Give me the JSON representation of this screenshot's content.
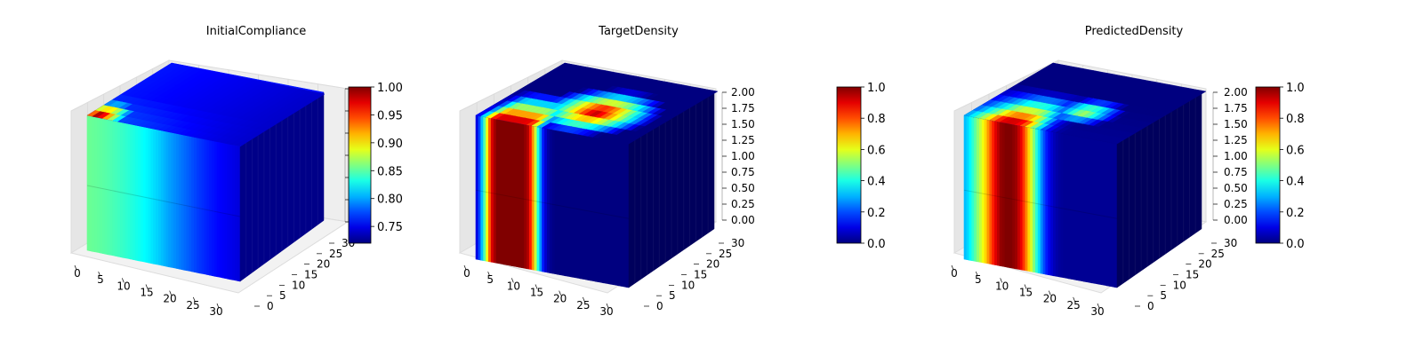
{
  "chart_data": [
    {
      "type": "voxel-3d",
      "title": "InitialCompliance",
      "x_ticks": [
        "0",
        "5",
        "10",
        "15",
        "20",
        "25",
        "30"
      ],
      "y_ticks": [
        "0",
        "5",
        "10",
        "15",
        "20",
        "25",
        "30"
      ],
      "z_ticks": [],
      "colormap": "jet",
      "colorbar": {
        "min": 0.72,
        "max": 1.0,
        "ticks": [
          "0.75",
          "0.80",
          "0.85",
          "0.90",
          "0.95",
          "1.00"
        ]
      },
      "front_face_profile": [
        0.855,
        0.852,
        0.848,
        0.843,
        0.837,
        0.83,
        0.822,
        0.812,
        0.8,
        0.79,
        0.78,
        0.77,
        0.762,
        0.755,
        0.75,
        0.745
      ],
      "top_hotspot": {
        "x": 2,
        "value": 1.0
      }
    },
    {
      "type": "voxel-3d",
      "title": "TargetDensity",
      "x_ticks": [
        "0",
        "5",
        "10",
        "15",
        "20",
        "25",
        "30"
      ],
      "y_ticks": [
        "0",
        "5",
        "10",
        "15",
        "20",
        "25",
        "30"
      ],
      "z_ticks": [
        "0.00",
        "0.25",
        "0.50",
        "0.75",
        "1.00",
        "1.25",
        "1.50",
        "1.75",
        "2.00"
      ],
      "colormap": "jet",
      "colorbar": {
        "min": 0.0,
        "max": 1.0,
        "ticks": [
          "0.0",
          "0.2",
          "0.4",
          "0.6",
          "0.8",
          "1.0"
        ]
      },
      "front_face_profile": [
        0.05,
        0.25,
        0.55,
        0.9,
        1.0,
        1.0,
        1.0,
        1.0,
        1.0,
        1.0,
        0.95,
        0.7,
        0.35,
        0.1,
        0.02,
        0.0,
        0.0,
        0.0,
        0.0,
        0.0,
        0.0,
        0.0,
        0.0,
        0.0,
        0.0,
        0.0,
        0.0,
        0.0,
        0.0,
        0.0
      ]
    },
    {
      "type": "voxel-3d",
      "title": "PredictedDensity",
      "x_ticks": [
        "0",
        "5",
        "10",
        "15",
        "20",
        "25",
        "30"
      ],
      "y_ticks": [
        "0",
        "5",
        "10",
        "15",
        "20",
        "25",
        "30"
      ],
      "z_ticks": [
        "0.00",
        "0.25",
        "0.50",
        "0.75",
        "1.00",
        "1.25",
        "1.50",
        "1.75",
        "2.00"
      ],
      "colormap": "jet",
      "colorbar": {
        "min": 0.0,
        "max": 1.0,
        "ticks": [
          "0.0",
          "0.2",
          "0.4",
          "0.6",
          "0.8",
          "1.0"
        ]
      },
      "front_face_profile": [
        0.3,
        0.35,
        0.45,
        0.55,
        0.65,
        0.78,
        0.9,
        0.98,
        1.0,
        1.0,
        0.97,
        0.88,
        0.72,
        0.55,
        0.38,
        0.22,
        0.12,
        0.06,
        0.03,
        0.02,
        0.02,
        0.02,
        0.02,
        0.02,
        0.02,
        0.02,
        0.02,
        0.02,
        0.02,
        0.02
      ]
    }
  ]
}
